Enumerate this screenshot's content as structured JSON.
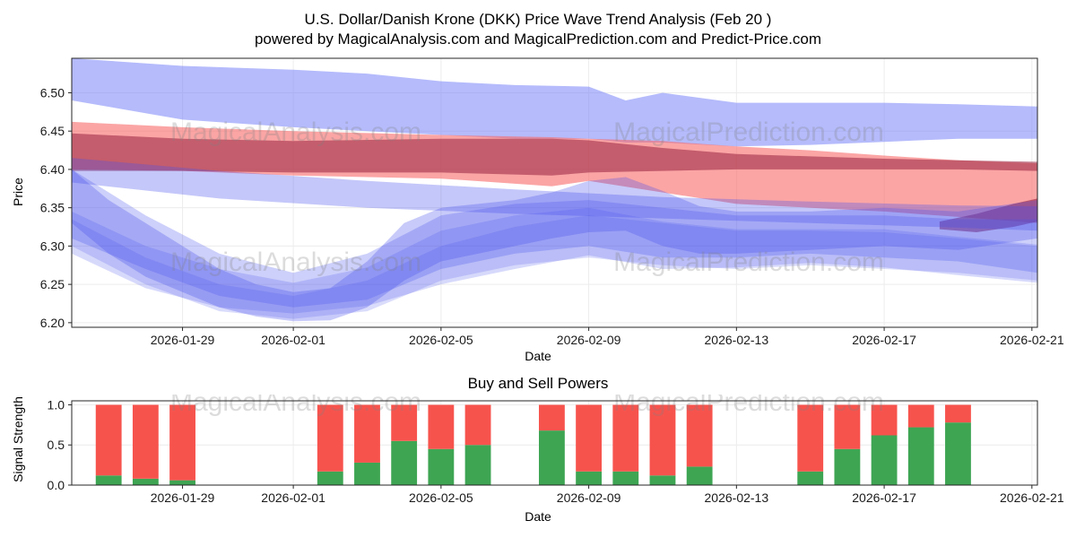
{
  "title": {
    "line1": "U.S. Dollar/Danish Krone (DKK) Price Wave Trend Analysis (Feb 20 )",
    "line2": "powered by MagicalAnalysis.com and MagicalPrediction.com and Predict-Price.com"
  },
  "watermarks": {
    "left": "MagicalAnalysis.com",
    "right": "MagicalPrediction.com"
  },
  "chart_data": [
    {
      "type": "area",
      "name": "price_wave_trend",
      "xlabel": "Date",
      "ylabel": "Price",
      "x_domain": [
        0,
        26.15
      ],
      "ylim": [
        6.194,
        6.545
      ],
      "grid": true,
      "x_ticks": [
        {
          "day": 3,
          "label": "2026-01-29"
        },
        {
          "day": 6,
          "label": "2026-02-01"
        },
        {
          "day": 10,
          "label": "2026-02-05"
        },
        {
          "day": 14,
          "label": "2026-02-09"
        },
        {
          "day": 18,
          "label": "2026-02-13"
        },
        {
          "day": 22,
          "label": "2026-02-17"
        },
        {
          "day": 26,
          "label": "2026-02-21"
        }
      ],
      "y_ticks": [
        {
          "v": 6.2,
          "label": "6.20"
        },
        {
          "v": 6.25,
          "label": "6.25"
        },
        {
          "v": 6.3,
          "label": "6.30"
        },
        {
          "v": 6.35,
          "label": "6.35"
        },
        {
          "v": 6.4,
          "label": "6.40"
        },
        {
          "v": 6.45,
          "label": "6.45"
        },
        {
          "v": 6.5,
          "label": "6.50"
        }
      ],
      "bands": [
        {
          "name": "upper-forecast-band",
          "color": "rgba(121,131,247,0.55)",
          "points": [
            [
              0,
              6.49,
              6.545
            ],
            [
              3,
              6.465,
              6.535
            ],
            [
              6,
              6.455,
              6.53
            ],
            [
              8,
              6.45,
              6.525
            ],
            [
              10,
              6.445,
              6.515
            ],
            [
              12,
              6.44,
              6.51
            ],
            [
              14,
              6.44,
              6.508
            ],
            [
              15,
              6.435,
              6.49
            ],
            [
              16,
              6.435,
              6.5
            ],
            [
              18,
              6.43,
              6.487
            ],
            [
              20,
              6.432,
              6.487
            ],
            [
              22,
              6.436,
              6.487
            ],
            [
              24,
              6.44,
              6.485
            ],
            [
              26.15,
              6.44,
              6.482
            ]
          ]
        },
        {
          "name": "red-forecast-band",
          "color": "rgba(249,105,105,0.6)",
          "points": [
            [
              0,
              6.4,
              6.462
            ],
            [
              3,
              6.398,
              6.455
            ],
            [
              6,
              6.392,
              6.45
            ],
            [
              10,
              6.388,
              6.445
            ],
            [
              13,
              6.378,
              6.442
            ],
            [
              14,
              6.385,
              6.44
            ],
            [
              16,
              6.37,
              6.437
            ],
            [
              18,
              6.355,
              6.43
            ],
            [
              20,
              6.35,
              6.425
            ],
            [
              22,
              6.345,
              6.418
            ],
            [
              24,
              6.338,
              6.412
            ],
            [
              26.15,
              6.33,
              6.408
            ]
          ]
        },
        {
          "name": "maroon-band",
          "color": "rgba(152,34,63,0.55)",
          "points": [
            [
              0,
              6.398,
              6.447
            ],
            [
              3,
              6.398,
              6.44
            ],
            [
              6,
              6.396,
              6.437
            ],
            [
              10,
              6.396,
              6.44
            ],
            [
              13,
              6.392,
              6.44
            ],
            [
              14,
              6.396,
              6.438
            ],
            [
              16,
              6.398,
              6.428
            ],
            [
              18,
              6.4,
              6.42
            ],
            [
              20,
              6.4,
              6.417
            ],
            [
              22,
              6.4,
              6.414
            ],
            [
              24,
              6.4,
              6.412
            ],
            [
              26.15,
              6.398,
              6.41
            ]
          ]
        },
        {
          "name": "maroon-end-blob",
          "color": "rgba(152,34,63,0.6)",
          "points": [
            [
              23.5,
              6.322,
              6.332
            ],
            [
              24.5,
              6.318,
              6.342
            ],
            [
              25.5,
              6.325,
              6.355
            ],
            [
              26.15,
              6.332,
              6.362
            ]
          ]
        },
        {
          "name": "blue-diagonal-band",
          "color": "rgba(72,80,235,0.32)",
          "points": [
            [
              0,
              6.383,
              6.415
            ],
            [
              4,
              6.362,
              6.398
            ],
            [
              8,
              6.35,
              6.385
            ],
            [
              12,
              6.342,
              6.374
            ],
            [
              16,
              6.336,
              6.364
            ],
            [
              20,
              6.33,
              6.358
            ],
            [
              24,
              6.324,
              6.353
            ],
            [
              26.15,
              6.32,
              6.352
            ]
          ]
        },
        {
          "name": "blue-wave-band-1",
          "color": "rgba(72,80,235,0.27)",
          "points": [
            [
              0,
              6.31,
              6.4
            ],
            [
              2,
              6.27,
              6.34
            ],
            [
              4,
              6.235,
              6.29
            ],
            [
              6,
              6.22,
              6.265
            ],
            [
              8,
              6.23,
              6.29
            ],
            [
              10,
              6.27,
              6.34
            ],
            [
              12,
              6.29,
              6.355
            ],
            [
              14,
              6.3,
              6.36
            ],
            [
              16,
              6.285,
              6.35
            ],
            [
              18,
              6.285,
              6.34
            ],
            [
              20,
              6.29,
              6.34
            ],
            [
              22,
              6.285,
              6.34
            ],
            [
              24,
              6.28,
              6.335
            ],
            [
              26.15,
              6.265,
              6.335
            ]
          ]
        },
        {
          "name": "blue-wave-band-2",
          "color": "rgba(72,80,235,0.3)",
          "points": [
            [
              0,
              6.33,
              6.4
            ],
            [
              1,
              6.29,
              6.36
            ],
            [
              2,
              6.26,
              6.33
            ],
            [
              3,
              6.24,
              6.3
            ],
            [
              4,
              6.22,
              6.27
            ],
            [
              5,
              6.208,
              6.25
            ],
            [
              6,
              6.202,
              6.24
            ],
            [
              7,
              6.203,
              6.245
            ],
            [
              8,
              6.22,
              6.28
            ],
            [
              9,
              6.255,
              6.33
            ],
            [
              10,
              6.28,
              6.35
            ],
            [
              12,
              6.3,
              6.36
            ],
            [
              13,
              6.31,
              6.37
            ],
            [
              14,
              6.318,
              6.385
            ],
            [
              15,
              6.32,
              6.39
            ],
            [
              16,
              6.3,
              6.372
            ],
            [
              17,
              6.29,
              6.352
            ],
            [
              18,
              6.29,
              6.345
            ],
            [
              20,
              6.295,
              6.345
            ],
            [
              22,
              6.3,
              6.35
            ],
            [
              24,
              6.295,
              6.345
            ],
            [
              26.15,
              6.31,
              6.36
            ]
          ]
        },
        {
          "name": "blue-wave-band-3",
          "color": "rgba(72,80,235,0.22)",
          "points": [
            [
              0,
              6.29,
              6.345
            ],
            [
              2,
              6.245,
              6.3
            ],
            [
              4,
              6.22,
              6.27
            ],
            [
              6,
              6.212,
              6.252
            ],
            [
              8,
              6.222,
              6.272
            ],
            [
              10,
              6.25,
              6.32
            ],
            [
              12,
              6.27,
              6.34
            ],
            [
              14,
              6.288,
              6.35
            ],
            [
              16,
              6.27,
              6.332
            ],
            [
              18,
              6.272,
              6.322
            ],
            [
              20,
              6.278,
              6.322
            ],
            [
              22,
              6.272,
              6.322
            ],
            [
              24,
              6.262,
              6.312
            ],
            [
              26.15,
              6.252,
              6.302
            ]
          ]
        },
        {
          "name": "blue-wave-band-4",
          "color": "rgba(72,80,235,0.2)",
          "points": [
            [
              0,
              6.3,
              6.335
            ],
            [
              2,
              6.25,
              6.285
            ],
            [
              4,
              6.215,
              6.25
            ],
            [
              6,
              6.205,
              6.235
            ],
            [
              8,
              6.215,
              6.255
            ],
            [
              10,
              6.255,
              6.3
            ],
            [
              12,
              6.275,
              6.325
            ],
            [
              14,
              6.285,
              6.34
            ],
            [
              16,
              6.275,
              6.33
            ],
            [
              18,
              6.27,
              6.32
            ],
            [
              20,
              6.275,
              6.32
            ],
            [
              22,
              6.27,
              6.318
            ],
            [
              24,
              6.265,
              6.31
            ],
            [
              26.15,
              6.255,
              6.3
            ]
          ]
        }
      ]
    },
    {
      "type": "bar",
      "name": "buy_sell_powers",
      "title": "Buy and Sell Powers",
      "xlabel": "Date",
      "ylabel": "Signal Strength",
      "x_domain": [
        0,
        26.15
      ],
      "ylim": [
        0,
        1.05
      ],
      "grid": true,
      "bar_width_days": 0.7,
      "x_ticks": [
        {
          "day": 3,
          "label": "2026-01-29"
        },
        {
          "day": 6,
          "label": "2026-02-01"
        },
        {
          "day": 10,
          "label": "2026-02-05"
        },
        {
          "day": 14,
          "label": "2026-02-09"
        },
        {
          "day": 18,
          "label": "2026-02-13"
        },
        {
          "day": 22,
          "label": "2026-02-17"
        },
        {
          "day": 26,
          "label": "2026-02-21"
        }
      ],
      "y_ticks": [
        {
          "v": 0.0,
          "label": "0.0"
        },
        {
          "v": 0.5,
          "label": "0.5"
        },
        {
          "v": 1.0,
          "label": "1.0"
        }
      ],
      "series": [
        {
          "name": "buy",
          "color": "#3ea553"
        },
        {
          "name": "sell",
          "color": "#f7534d"
        }
      ],
      "bars": [
        {
          "day": 1,
          "buy": 0.12,
          "sell": 0.88
        },
        {
          "day": 2,
          "buy": 0.08,
          "sell": 0.92
        },
        {
          "day": 3,
          "buy": 0.06,
          "sell": 0.94
        },
        {
          "day": 7,
          "buy": 0.17,
          "sell": 0.83
        },
        {
          "day": 8,
          "buy": 0.28,
          "sell": 0.72
        },
        {
          "day": 9,
          "buy": 0.55,
          "sell": 0.45
        },
        {
          "day": 10,
          "buy": 0.45,
          "sell": 0.55
        },
        {
          "day": 11,
          "buy": 0.5,
          "sell": 0.5
        },
        {
          "day": 13,
          "buy": 0.68,
          "sell": 0.32
        },
        {
          "day": 14,
          "buy": 0.17,
          "sell": 0.83
        },
        {
          "day": 15,
          "buy": 0.17,
          "sell": 0.83
        },
        {
          "day": 16,
          "buy": 0.12,
          "sell": 0.88
        },
        {
          "day": 17,
          "buy": 0.23,
          "sell": 0.77
        },
        {
          "day": 20,
          "buy": 0.17,
          "sell": 0.83
        },
        {
          "day": 21,
          "buy": 0.45,
          "sell": 0.55
        },
        {
          "day": 22,
          "buy": 0.62,
          "sell": 0.38
        },
        {
          "day": 23,
          "buy": 0.72,
          "sell": 0.28
        },
        {
          "day": 24,
          "buy": 0.78,
          "sell": 0.22
        }
      ]
    }
  ]
}
